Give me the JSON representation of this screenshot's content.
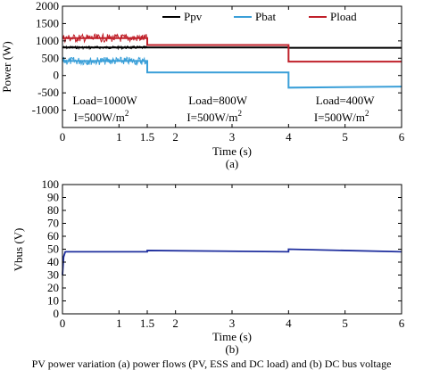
{
  "chart_data": [
    {
      "type": "line",
      "subplot_label": "(a)",
      "xlabel": "Time (s)",
      "ylabel": "Power (W)",
      "xlim": [
        0,
        6
      ],
      "ylim": [
        -1500,
        2000
      ],
      "xticks": [
        "0",
        "1",
        "1.5",
        "2",
        "3",
        "4",
        "5",
        "6"
      ],
      "yticks": [
        "-1000",
        "-500",
        "0",
        "500",
        "1000",
        "1500",
        "2000"
      ],
      "grid": false,
      "legend": {
        "placement": "top-right",
        "entries": [
          "Ppv",
          "Pbat",
          "Pload"
        ]
      },
      "series": [
        {
          "name": "Ppv",
          "color": "#000000",
          "x": [
            0,
            1.5,
            1.5,
            4,
            4,
            6
          ],
          "y": [
            810,
            810,
            810,
            810,
            800,
            800
          ]
        },
        {
          "name": "Pbat",
          "color": "#3a9fd8",
          "x": [
            0,
            1.5,
            1.5,
            4,
            4,
            6
          ],
          "y": [
            420,
            420,
            90,
            90,
            -350,
            -320
          ]
        },
        {
          "name": "Pload",
          "color": "#c0202a",
          "x": [
            0,
            1.5,
            1.5,
            4,
            4,
            6
          ],
          "y": [
            1080,
            1080,
            880,
            880,
            400,
            400
          ]
        }
      ],
      "annotations": [
        {
          "x": 0.75,
          "load": "Load=1000W",
          "irr": "I=500W/m",
          "sup": "2"
        },
        {
          "x": 2.75,
          "load": "Load=800W",
          "irr": "I=500W/m",
          "sup": "2"
        },
        {
          "x": 5.0,
          "load": "Load=400W",
          "irr": "I=500W/m",
          "sup": "2"
        }
      ]
    },
    {
      "type": "line",
      "subplot_label": "(b)",
      "xlabel": "Time (s)",
      "ylabel": "Vbus (V)",
      "xlim": [
        0,
        6
      ],
      "ylim": [
        0,
        100
      ],
      "xticks": [
        "0",
        "1",
        "1.5",
        "2",
        "3",
        "4",
        "5",
        "6"
      ],
      "yticks": [
        "0",
        "10",
        "20",
        "30",
        "40",
        "50",
        "60",
        "70",
        "80",
        "90",
        "100"
      ],
      "grid": false,
      "series": [
        {
          "color": "#1f2f9e",
          "x": [
            0,
            0.02,
            0.05,
            1.5,
            1.5,
            4,
            4,
            6
          ],
          "y": [
            30,
            44,
            48,
            48,
            49,
            48,
            50,
            48
          ]
        }
      ]
    }
  ],
  "caption": "PV power variation (a) power flows (PV, ESS and DC load) and (b) DC bus voltage"
}
